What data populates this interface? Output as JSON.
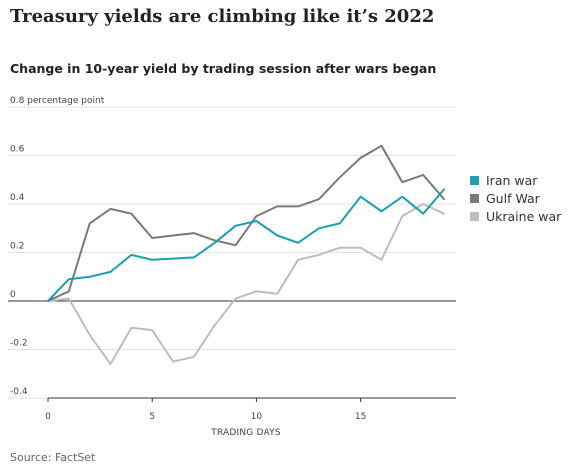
{
  "headline": "Treasury yields are climbing like it’s 2022",
  "source": "Source: FactSet",
  "chart_data": {
    "type": "line",
    "title": "Change in 10-year yield by trading session after wars began",
    "xlabel": "TRADING DAYS",
    "ylabel": "",
    "y_unit_label": "0.8 percentage point",
    "xlim": [
      0,
      19
    ],
    "ylim": [
      -0.4,
      0.8
    ],
    "x_ticks": [
      0,
      5,
      10,
      15
    ],
    "y_ticks": [
      {
        "value": 0.8,
        "label": "0.8 percentage point"
      },
      {
        "value": 0.6,
        "label": "0.6"
      },
      {
        "value": 0.4,
        "label": "0.4"
      },
      {
        "value": 0.2,
        "label": "0.2"
      },
      {
        "value": 0,
        "label": "0"
      },
      {
        "value": -0.2,
        "label": "-0.2"
      },
      {
        "value": -0.4,
        "label": "-0.4"
      }
    ],
    "grid": "horizontal",
    "legend": "right",
    "series": [
      {
        "name": "Iran war",
        "color": "#1aa0b0",
        "x": [
          0,
          1,
          2,
          3,
          4,
          5,
          6,
          7,
          8,
          9,
          10,
          11,
          12,
          13,
          14,
          15,
          16,
          17,
          18,
          19
        ],
        "values": [
          0,
          0.09,
          0.1,
          0.12,
          0.19,
          0.17,
          0.175,
          0.18,
          0.24,
          0.31,
          0.33,
          0.27,
          0.24,
          0.3,
          0.32,
          0.43,
          0.37,
          0.43,
          0.36,
          0.46
        ]
      },
      {
        "name": "Gulf War",
        "color": "#7a7a7a",
        "x": [
          0,
          1,
          2,
          3,
          4,
          5,
          6,
          7,
          8,
          9,
          10,
          11,
          12,
          13,
          14,
          15,
          16,
          17,
          18,
          19
        ],
        "values": [
          0,
          0.04,
          0.32,
          0.38,
          0.36,
          0.26,
          0.27,
          0.28,
          0.25,
          0.23,
          0.35,
          0.39,
          0.39,
          0.42,
          0.51,
          0.59,
          0.64,
          0.49,
          0.52,
          0.42
        ]
      },
      {
        "name": "Ukraine war",
        "color": "#bdbdbd",
        "x": [
          0,
          1,
          2,
          3,
          4,
          5,
          6,
          7,
          8,
          9,
          10,
          11,
          12,
          13,
          14,
          15,
          16,
          17,
          18,
          19
        ],
        "values": [
          0,
          0.01,
          -0.14,
          -0.26,
          -0.11,
          -0.12,
          -0.25,
          -0.23,
          -0.1,
          0.01,
          0.04,
          0.03,
          0.17,
          0.19,
          0.22,
          0.22,
          0.17,
          0.35,
          0.4,
          0.36
        ]
      }
    ]
  }
}
